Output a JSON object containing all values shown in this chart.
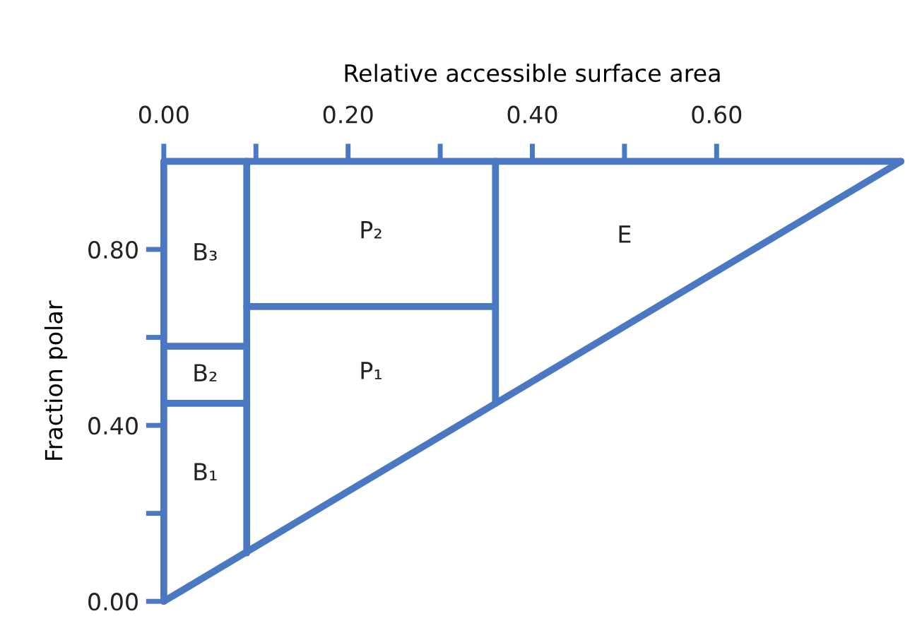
{
  "chart_data": {
    "type": "line",
    "xlabel": "Relative accessible surface area",
    "ylabel": "Fraction polar",
    "xlim": [
      0,
      0.8
    ],
    "ylim": [
      0,
      1.0
    ],
    "xticks": [
      {
        "value": 0,
        "label": "0.00"
      },
      {
        "value": 0.1,
        "label": null
      },
      {
        "value": 0.2,
        "label": "0.20"
      },
      {
        "value": 0.3,
        "label": null
      },
      {
        "value": 0.4,
        "label": "0.40"
      },
      {
        "value": 0.5,
        "label": null
      },
      {
        "value": 0.6,
        "label": "0.60"
      }
    ],
    "yticks": [
      {
        "value": 0,
        "label": "0.00"
      },
      {
        "value": 0.2,
        "label": null
      },
      {
        "value": 0.4,
        "label": "0.40"
      },
      {
        "value": 0.6,
        "label": null
      },
      {
        "value": 0.8,
        "label": "0.80"
      }
    ],
    "grid": false,
    "marker": "none",
    "line_style": "solid",
    "series": [
      {
        "color": "#4a78c2",
        "x": [
          0,
          0.8
        ],
        "values": [
          0,
          1.0
        ]
      },
      {
        "color": "#4a78c2",
        "x": [
          0,
          0
        ],
        "values": [
          0,
          1.0
        ]
      },
      {
        "color": "#4a78c2",
        "x": [
          0,
          0.8
        ],
        "values": [
          1.0,
          1.0
        ]
      },
      {
        "color": "#4a78c2",
        "x": [
          0.09,
          0.09
        ],
        "values": [
          0.11,
          1.0
        ]
      },
      {
        "color": "#4a78c2",
        "x": [
          0.36,
          0.36
        ],
        "values": [
          0.45,
          1.0
        ]
      },
      {
        "color": "#4a78c2",
        "x": [
          0.09,
          0.36
        ],
        "values": [
          0.67,
          0.67
        ]
      },
      {
        "color": "#4a78c2",
        "x": [
          0,
          0.09
        ],
        "values": [
          0.45,
          0.45
        ]
      },
      {
        "color": "#4a78c2",
        "x": [
          0,
          0.09
        ],
        "values": [
          0.58,
          0.58
        ]
      }
    ],
    "annotations": [
      "B₃",
      "B₂",
      "B₁",
      "P₂",
      "P₁",
      "E"
    ]
  }
}
